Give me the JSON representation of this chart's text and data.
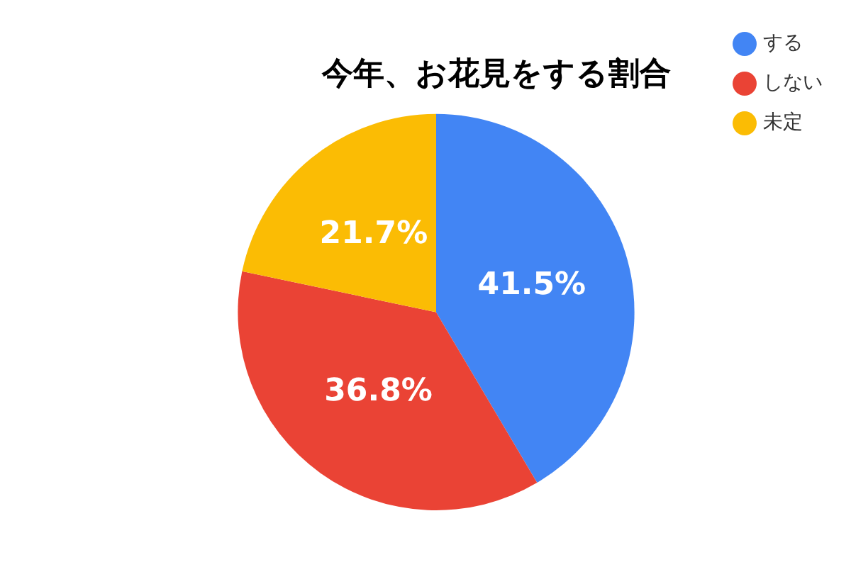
{
  "chart_data": {
    "type": "pie",
    "title": "今年、お花見をする割合",
    "categories": [
      "する",
      "しない",
      "未定"
    ],
    "values": [
      41.5,
      36.8,
      21.7
    ],
    "colors": [
      "#4285f4",
      "#ea4335",
      "#fbbc04"
    ],
    "value_labels": [
      "41.5%",
      "36.8%",
      "21.7%"
    ],
    "legend": "top right"
  }
}
